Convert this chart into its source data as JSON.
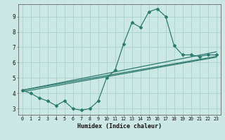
{
  "xlabel": "Humidex (Indice chaleur)",
  "background_color": "#cce8e4",
  "grid_color": "#aacfcb",
  "line_color": "#2d7a6e",
  "xlim_min": -0.5,
  "xlim_max": 23.5,
  "ylim_min": 2.6,
  "ylim_max": 9.8,
  "yticks": [
    3,
    4,
    5,
    6,
    7,
    8,
    9
  ],
  "xticks": [
    0,
    1,
    2,
    3,
    4,
    5,
    6,
    7,
    8,
    9,
    10,
    11,
    12,
    13,
    14,
    15,
    16,
    17,
    18,
    19,
    20,
    21,
    22,
    23
  ],
  "series1_x": [
    0,
    1,
    2,
    3,
    4,
    5,
    6,
    7,
    8,
    9,
    10,
    11,
    12,
    13,
    14,
    15,
    16,
    17,
    18,
    19,
    20,
    21,
    22,
    23
  ],
  "series1_y": [
    4.2,
    4.0,
    3.7,
    3.5,
    3.2,
    3.5,
    3.0,
    2.9,
    3.0,
    3.5,
    5.0,
    5.5,
    7.2,
    8.6,
    8.3,
    9.3,
    9.5,
    9.0,
    7.1,
    6.5,
    6.5,
    6.4,
    6.5,
    6.5
  ],
  "series2_x": [
    0,
    23
  ],
  "series2_y": [
    4.2,
    6.7
  ],
  "series3_x": [
    0,
    23
  ],
  "series3_y": [
    4.2,
    6.4
  ],
  "series4_x": [
    0,
    23
  ],
  "series4_y": [
    4.1,
    6.35
  ]
}
